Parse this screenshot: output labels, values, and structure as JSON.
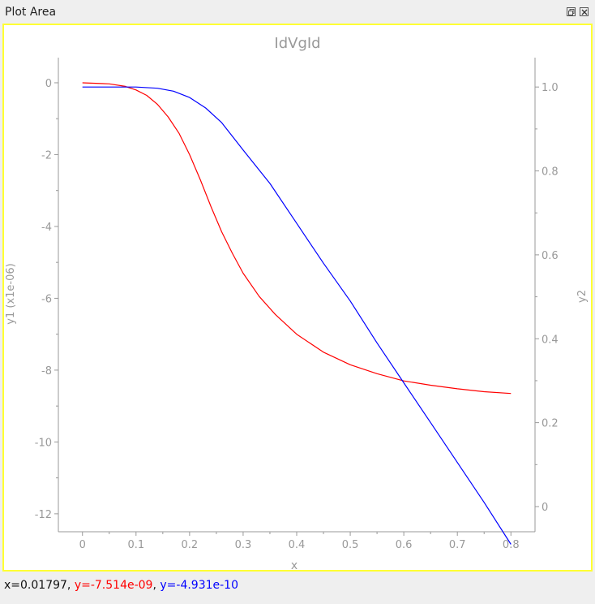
{
  "dock": {
    "title": "Plot Area",
    "float_icon": "float-icon",
    "close_icon": "close-icon"
  },
  "status": {
    "x_text": "x=0.01797",
    "y1_text": "y=-7.514e-09",
    "y2_text": "y=-4.931e-10",
    "sep": ", ",
    "y1_color": "#ff0000",
    "y2_color": "#0000ff"
  },
  "colors": {
    "frame_border": "#ffff33",
    "axis": "#999999",
    "text": "#999999"
  },
  "chart_data": {
    "type": "line",
    "title": "IdVgId",
    "xlabel": "x",
    "ylabel_left": "y1 (x1e-06)",
    "ylabel_right": "y2",
    "xlim": [
      -0.045,
      0.845
    ],
    "ylim_left": [
      -12.5,
      0.7
    ],
    "ylim_right": [
      -0.06,
      1.07
    ],
    "xticks": [
      0,
      0.1,
      0.2,
      0.3,
      0.4,
      0.5,
      0.6,
      0.7,
      0.8
    ],
    "xtick_labels": [
      "0",
      "0.1",
      "0.2",
      "0.3",
      "0.4",
      "0.5",
      "0.6",
      "0.7",
      "0.8"
    ],
    "yticks_left": [
      0,
      -2,
      -4,
      -6,
      -8,
      -10,
      -12
    ],
    "ytick_labels_left": [
      "0",
      "-2",
      "-4",
      "-6",
      "-8",
      "-10",
      "-12"
    ],
    "yticks_right": [
      0,
      0.2,
      0.4,
      0.6,
      0.8,
      1.0
    ],
    "ytick_labels_right": [
      "0",
      "0.2",
      "0.4",
      "0.6",
      "0.8",
      "1.0"
    ],
    "grid": false,
    "series": [
      {
        "color": "#ff0000",
        "axis": "left",
        "x": [
          0,
          0.05,
          0.08,
          0.1,
          0.12,
          0.14,
          0.16,
          0.18,
          0.2,
          0.22,
          0.24,
          0.26,
          0.28,
          0.3,
          0.33,
          0.36,
          0.4,
          0.45,
          0.5,
          0.55,
          0.6,
          0.65,
          0.7,
          0.75,
          0.8
        ],
        "y": [
          0,
          -0.03,
          -0.1,
          -0.2,
          -0.35,
          -0.6,
          -0.95,
          -1.4,
          -2.0,
          -2.7,
          -3.45,
          -4.15,
          -4.75,
          -5.3,
          -5.95,
          -6.45,
          -7.0,
          -7.5,
          -7.85,
          -8.1,
          -8.3,
          -8.42,
          -8.52,
          -8.6,
          -8.65
        ]
      },
      {
        "color": "#0000ff",
        "axis": "right",
        "x": [
          0,
          0.1,
          0.14,
          0.17,
          0.2,
          0.23,
          0.26,
          0.3,
          0.35,
          0.4,
          0.45,
          0.5,
          0.55,
          0.6,
          0.65,
          0.7,
          0.75,
          0.8
        ],
        "y": [
          1.0,
          1.0,
          0.997,
          0.99,
          0.975,
          0.95,
          0.915,
          0.85,
          0.77,
          0.675,
          0.58,
          0.49,
          0.39,
          0.295,
          0.2,
          0.105,
          0.01,
          -0.09
        ]
      }
    ]
  }
}
